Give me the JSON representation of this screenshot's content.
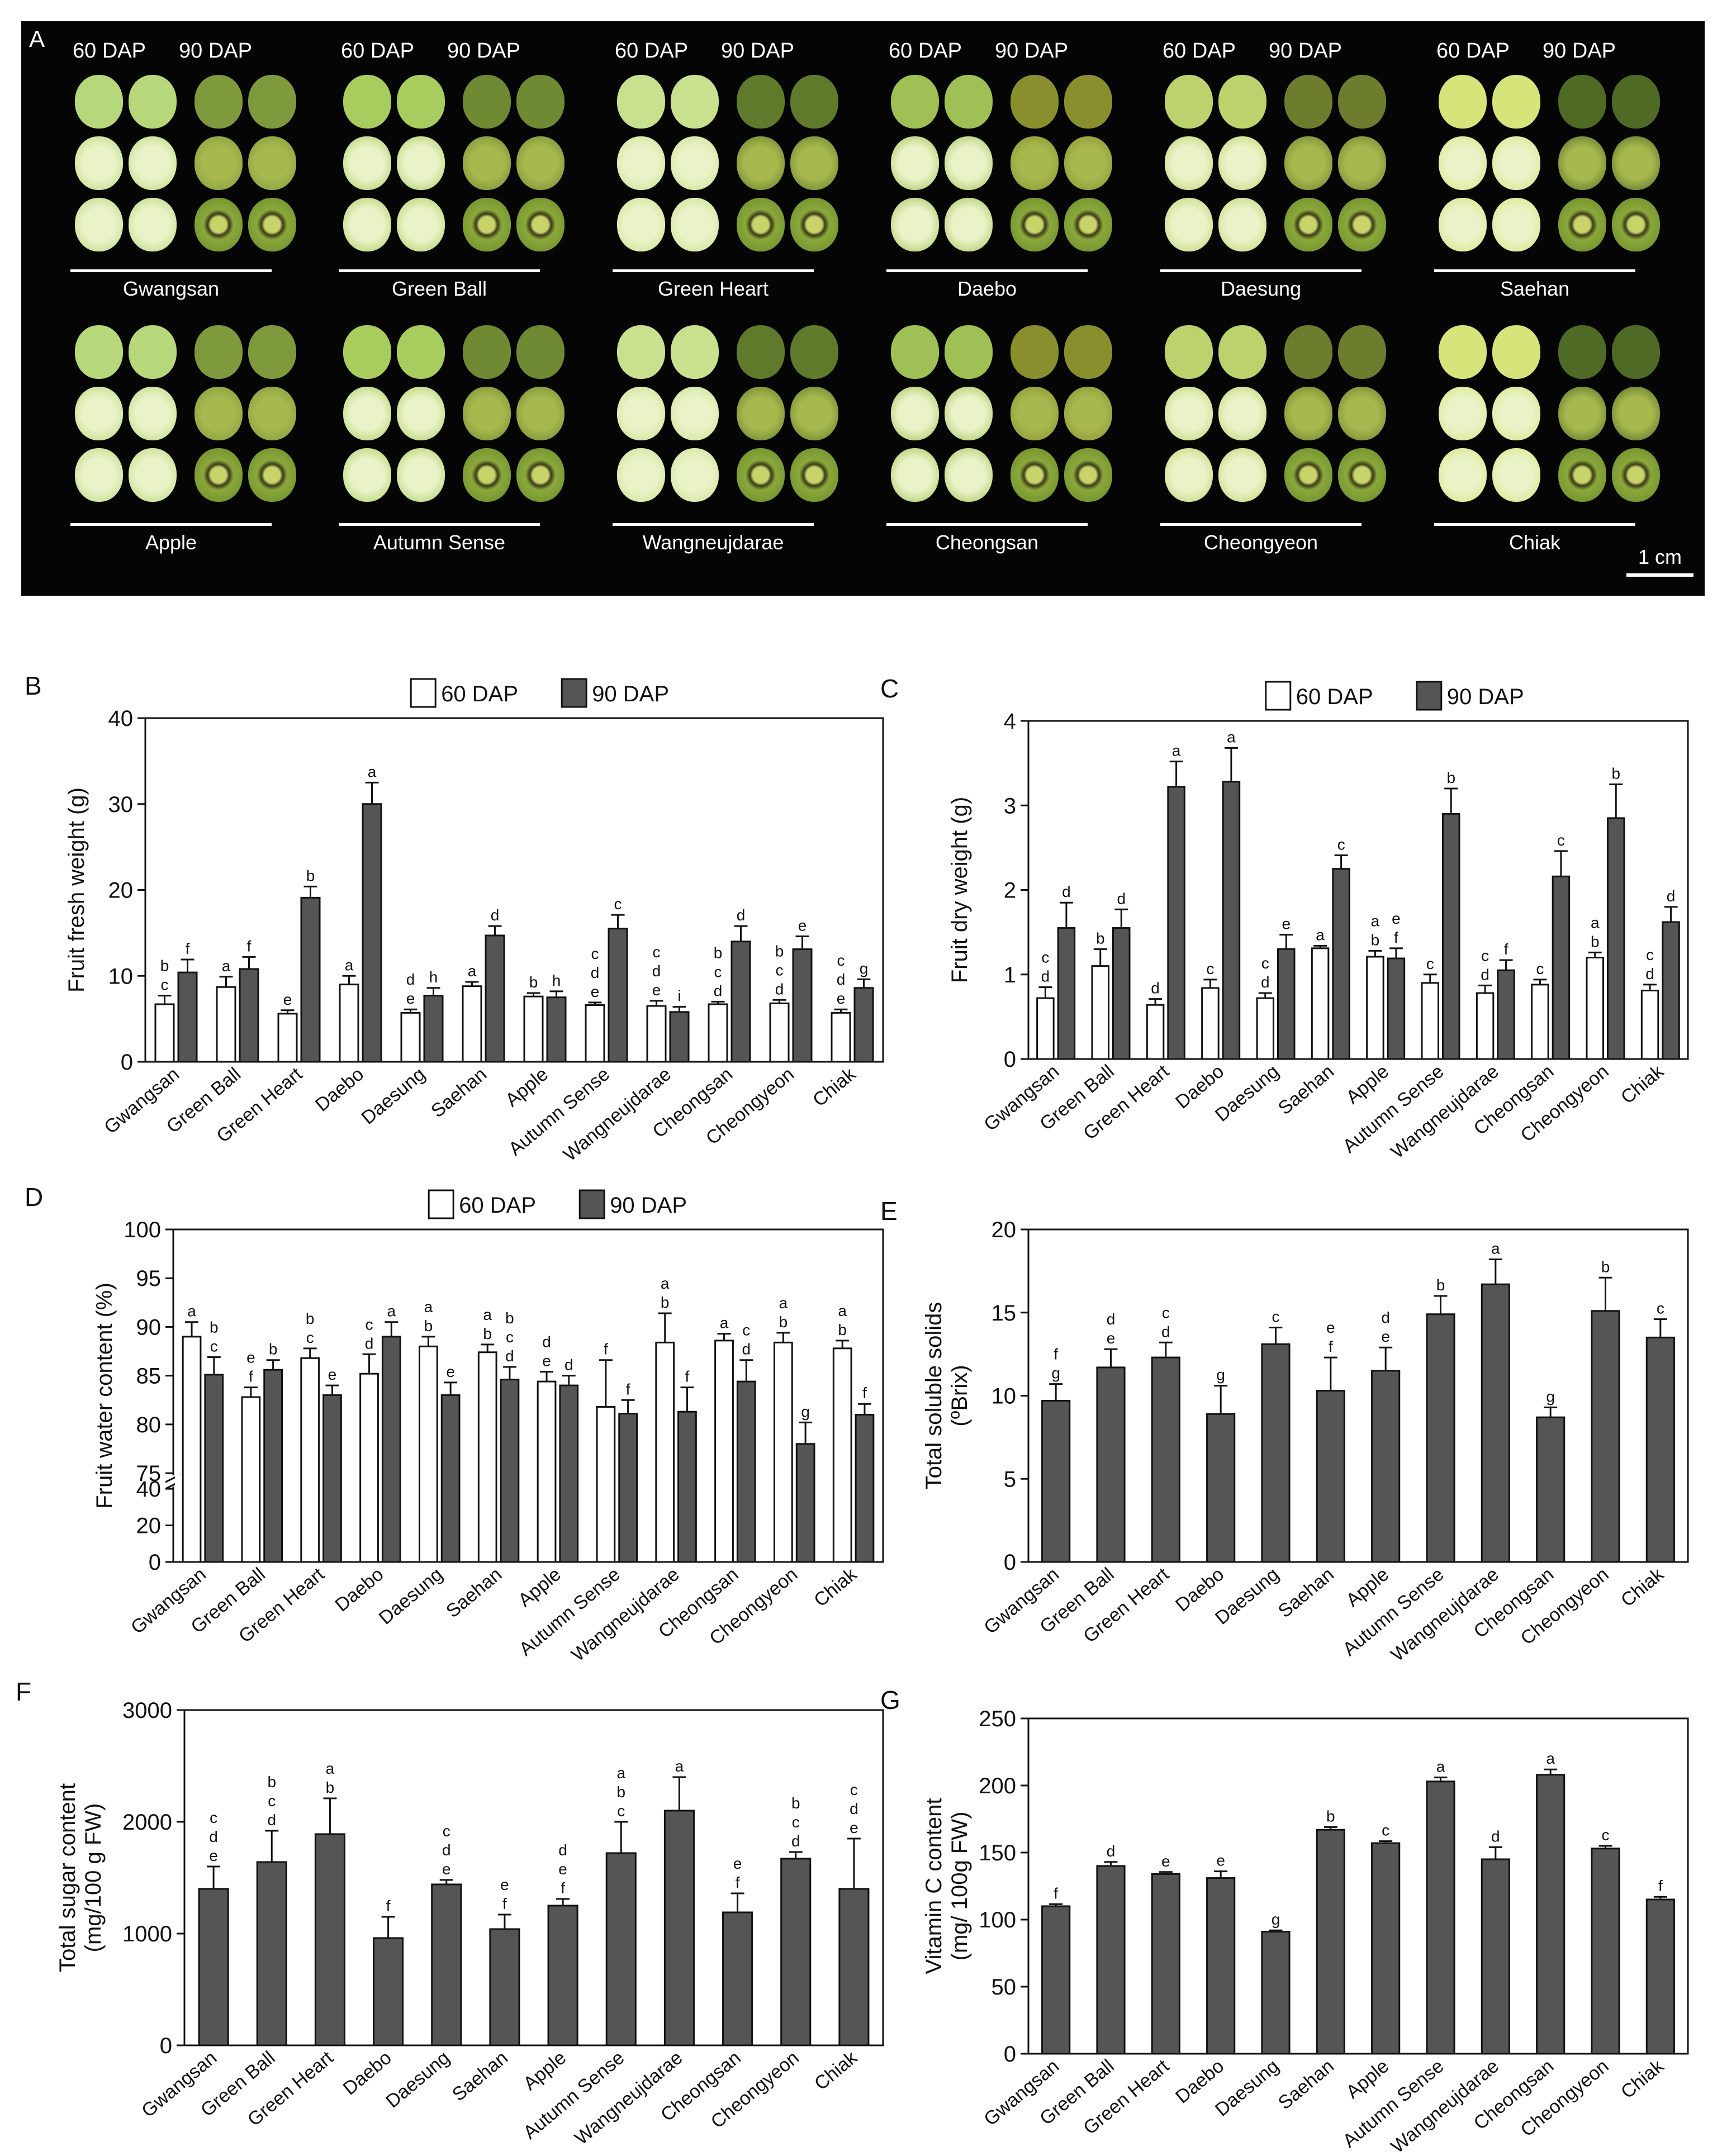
{
  "panel_a": {
    "letter": "A",
    "dap60": "60 DAP",
    "dap90": "90 DAP",
    "scale": "1 cm",
    "cultivars_row1": [
      "Gwangsan",
      "Green Ball",
      "Green Heart",
      "Daebo",
      "Daesung",
      "Saehan"
    ],
    "cultivars_row2": [
      "Apple",
      "Autumn Sense",
      "Wangneujdarae",
      "Cheongsan",
      "Cheongyeon",
      "Chiak"
    ]
  },
  "colors": {
    "dap60": "#ffffff",
    "dap90": "#555555",
    "frame": "#000000"
  },
  "chart_data": [
    {
      "panel": "B",
      "type": "bar",
      "ylabel": "Fruit fresh weight (g)",
      "ylim": [
        0,
        40
      ],
      "yticks": [
        0,
        10,
        20,
        30,
        40
      ],
      "categories": [
        "Gwangsan",
        "Green Ball",
        "Green Heart",
        "Daebo",
        "Daesung",
        "Saehan",
        "Apple",
        "Autumn Sense",
        "Wangneujdarae",
        "Cheongsan",
        "Cheongyeon",
        "Chiak"
      ],
      "legend": [
        "60 DAP",
        "90 DAP"
      ],
      "series": [
        {
          "name": "60 DAP",
          "values": [
            6.7,
            8.7,
            5.6,
            9.0,
            5.7,
            8.8,
            7.6,
            6.6,
            6.5,
            6.7,
            6.8,
            5.7
          ],
          "errors": [
            1.0,
            1.2,
            0.4,
            1.0,
            0.4,
            0.5,
            0.4,
            0.3,
            0.6,
            0.3,
            0.4,
            0.4
          ],
          "letters": [
            "b c",
            "a",
            "e",
            "a",
            "d e",
            "a",
            "b",
            "c d e",
            "c d e",
            "b c d",
            "b c d",
            "c d e"
          ]
        },
        {
          "name": "90 DAP",
          "values": [
            10.4,
            10.8,
            19.1,
            30.0,
            7.7,
            14.7,
            7.5,
            15.5,
            5.8,
            14.0,
            13.1,
            8.6
          ],
          "errors": [
            1.5,
            1.4,
            1.3,
            2.5,
            0.9,
            1.1,
            0.7,
            1.6,
            0.6,
            1.8,
            1.5,
            1.0
          ],
          "letters": [
            "f",
            "f",
            "b",
            "a",
            "h",
            "d",
            "h",
            "c",
            "i",
            "d",
            "e",
            "g"
          ]
        }
      ]
    },
    {
      "panel": "C",
      "type": "bar",
      "ylabel": "Fruit dry weight (g)",
      "ylim": [
        0,
        4
      ],
      "yticks": [
        0,
        1,
        2,
        3,
        4
      ],
      "categories": [
        "Gwangsan",
        "Green Ball",
        "Green Heart",
        "Daebo",
        "Daesung",
        "Saehan",
        "Apple",
        "Autumn Sense",
        "Wangneujdarae",
        "Cheongsan",
        "Cheongyeon",
        "Chiak"
      ],
      "legend": [
        "60 DAP",
        "90 DAP"
      ],
      "series": [
        {
          "name": "60 DAP",
          "values": [
            0.72,
            1.1,
            0.64,
            0.84,
            0.72,
            1.31,
            1.21,
            0.9,
            0.78,
            0.88,
            1.2,
            0.81
          ],
          "errors": [
            0.13,
            0.2,
            0.07,
            0.1,
            0.06,
            0.03,
            0.07,
            0.1,
            0.09,
            0.06,
            0.06,
            0.07
          ],
          "letters": [
            "c d",
            "b",
            "d",
            "c",
            "c d",
            "a",
            "a b",
            "c",
            "c d",
            "c",
            "a b",
            "c d"
          ]
        },
        {
          "name": "90 DAP",
          "values": [
            1.55,
            1.55,
            3.22,
            3.28,
            1.3,
            2.25,
            1.19,
            2.9,
            1.05,
            2.16,
            2.85,
            1.62
          ],
          "errors": [
            0.3,
            0.22,
            0.3,
            0.4,
            0.17,
            0.16,
            0.12,
            0.3,
            0.12,
            0.3,
            0.4,
            0.18
          ],
          "letters": [
            "d",
            "d",
            "a",
            "a",
            "e",
            "c",
            "e f",
            "b",
            "f",
            "c",
            "b",
            "d"
          ]
        }
      ]
    },
    {
      "panel": "D",
      "type": "bar",
      "ylabel": "Fruit water content (%)",
      "ylim": [
        0,
        100
      ],
      "yticks_lower": [
        0,
        20,
        40
      ],
      "yticks_upper": [
        75,
        80,
        85,
        90,
        95,
        100
      ],
      "categories": [
        "Gwangsan",
        "Green Ball",
        "Green Heart",
        "Daebo",
        "Daesung",
        "Saehan",
        "Apple",
        "Autumn Sense",
        "Wangneujdarae",
        "Cheongsan",
        "Cheongyeon",
        "Chiak"
      ],
      "legend": [
        "60 DAP",
        "90 DAP"
      ],
      "series": [
        {
          "name": "60 DAP",
          "values": [
            89.0,
            82.8,
            86.8,
            85.2,
            88.0,
            87.4,
            84.4,
            81.8,
            88.4,
            88.6,
            88.4,
            87.8
          ],
          "errors": [
            1.5,
            1.0,
            1.0,
            2.0,
            1.0,
            0.8,
            1.0,
            4.8,
            3.0,
            0.7,
            1.0,
            0.8
          ],
          "letters": [
            "a",
            "e f",
            "b c",
            "c d",
            "a b",
            "a b",
            "d e",
            "f",
            "a b",
            "a",
            "a b",
            "a b"
          ]
        },
        {
          "name": "90 DAP",
          "values": [
            85.1,
            85.6,
            83.0,
            89.0,
            83.0,
            84.6,
            84.0,
            81.1,
            81.3,
            84.4,
            78.0,
            81.0
          ],
          "errors": [
            1.8,
            1.0,
            1.0,
            1.5,
            1.3,
            1.3,
            1.0,
            1.4,
            2.5,
            2.2,
            2.2,
            1.1
          ],
          "letters": [
            "b c",
            "b",
            "e",
            "a",
            "e",
            "b c d",
            "d",
            "f",
            "f",
            "c d",
            "g",
            "f"
          ]
        }
      ]
    },
    {
      "panel": "E",
      "type": "bar",
      "ylabel": "Total soluble solids (ºBrix)",
      "ylim": [
        0,
        20
      ],
      "yticks": [
        0,
        5,
        10,
        15,
        20
      ],
      "categories": [
        "Gwangsan",
        "Green Ball",
        "Green Heart",
        "Daebo",
        "Daesung",
        "Saehan",
        "Apple",
        "Autumn Sense",
        "Wangneujdarae",
        "Cheongsan",
        "Cheongyeon",
        "Chiak"
      ],
      "series": [
        {
          "name": "",
          "values": [
            9.7,
            11.7,
            12.3,
            8.9,
            13.1,
            10.3,
            11.5,
            14.9,
            16.7,
            8.7,
            15.1,
            13.5
          ],
          "errors": [
            1.0,
            1.1,
            0.9,
            1.7,
            1.0,
            2.0,
            1.4,
            1.1,
            1.5,
            0.6,
            2.0,
            1.1
          ],
          "letters": [
            "f g",
            "d e",
            "c d",
            "g",
            "c",
            "e f",
            "d e",
            "b",
            "a",
            "g",
            "b",
            "c"
          ]
        }
      ]
    },
    {
      "panel": "F",
      "type": "bar",
      "ylabel": "Total sugar content (mg/100 g FW)",
      "ylim": [
        0,
        3000
      ],
      "yticks": [
        0,
        1000,
        2000,
        3000
      ],
      "categories": [
        "Gwangsan",
        "Green Ball",
        "Green Heart",
        "Daebo",
        "Daesung",
        "Saehan",
        "Apple",
        "Autumn Sense",
        "Wangneujdarae",
        "Cheongsan",
        "Cheongyeon",
        "Chiak"
      ],
      "series": [
        {
          "name": "",
          "values": [
            1400,
            1640,
            1890,
            960,
            1440,
            1040,
            1250,
            1720,
            2100,
            1190,
            1670,
            1400
          ],
          "errors": [
            200,
            280,
            320,
            190,
            40,
            130,
            60,
            280,
            300,
            170,
            60,
            450
          ],
          "letters": [
            "c d e",
            "b c d",
            "a b",
            "f",
            "c d e",
            "e f",
            "d e f",
            "a b c",
            "a",
            "e f",
            "b c d",
            "c d e"
          ]
        }
      ]
    },
    {
      "panel": "G",
      "type": "bar",
      "ylabel": "Vitamin C content (mg/ 100g FW)",
      "ylim": [
        0,
        250
      ],
      "yticks": [
        0,
        50,
        100,
        150,
        200,
        250
      ],
      "categories": [
        "Gwangsan",
        "Green Ball",
        "Green Heart",
        "Daebo",
        "Daesung",
        "Saehan",
        "Apple",
        "Autumn Sense",
        "Wangneujdarae",
        "Cheongsan",
        "Cheongyeon",
        "Chiak"
      ],
      "series": [
        {
          "name": "",
          "values": [
            110,
            140,
            134,
            131,
            91,
            167,
            157,
            203,
            145,
            208,
            153,
            115
          ],
          "errors": [
            1.5,
            3,
            1.5,
            5,
            1,
            2,
            1.5,
            3,
            9,
            4,
            2,
            2
          ],
          "letters": [
            "f",
            "d",
            "e",
            "e",
            "g",
            "b",
            "c",
            "a",
            "d",
            "a",
            "c",
            "f"
          ]
        }
      ]
    }
  ]
}
